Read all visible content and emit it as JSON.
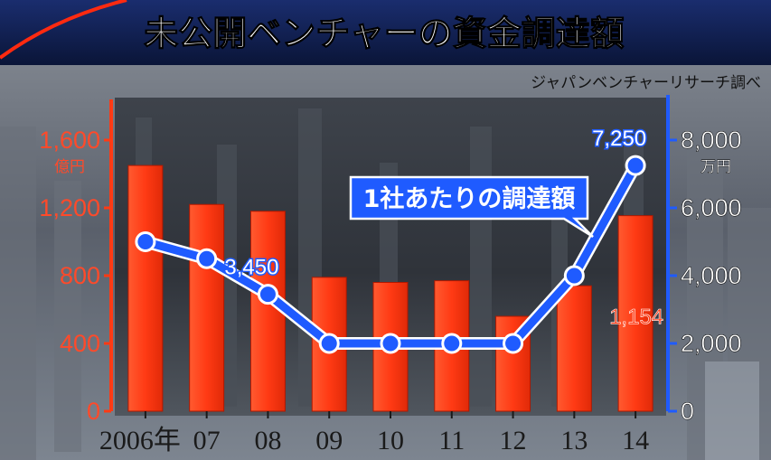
{
  "title": "未公開ベンチャーの資金調達額",
  "source": "ジャパンベンチャーリサーチ調べ",
  "colors": {
    "bar": "#ff3a14",
    "line": "#1f5bff",
    "title_bg": "#0c1a4a",
    "axis_left": "#ff3a14",
    "axis_right": "#1f5bff"
  },
  "chart_data": {
    "type": "bar",
    "categories": [
      "2006年",
      "07",
      "08",
      "09",
      "10",
      "11",
      "12",
      "13",
      "14"
    ],
    "y_left": {
      "label": "",
      "unit": "億円",
      "ticks": [
        "0",
        "400",
        "800",
        "1,200",
        "1,600"
      ],
      "range": [
        0,
        1600
      ]
    },
    "y_right": {
      "label": "",
      "unit": "万円",
      "ticks": [
        "0",
        "2,000",
        "4,000",
        "6,000",
        "8,000"
      ],
      "range": [
        0,
        8000
      ]
    },
    "series": [
      {
        "kind": "bar",
        "axis": "left",
        "values": [
          1450,
          1220,
          1180,
          790,
          760,
          770,
          560,
          740,
          1154
        ],
        "data_labels": [
          {
            "index": 8,
            "text": "1,154"
          }
        ]
      },
      {
        "kind": "line",
        "axis": "right",
        "name": "1社あたりの調達額",
        "values": [
          5000,
          4500,
          3450,
          2000,
          2000,
          2000,
          2000,
          4000,
          7250
        ],
        "data_labels": [
          {
            "index": 2,
            "text": "3,450"
          },
          {
            "index": 8,
            "text": "7,250"
          }
        ]
      }
    ]
  }
}
